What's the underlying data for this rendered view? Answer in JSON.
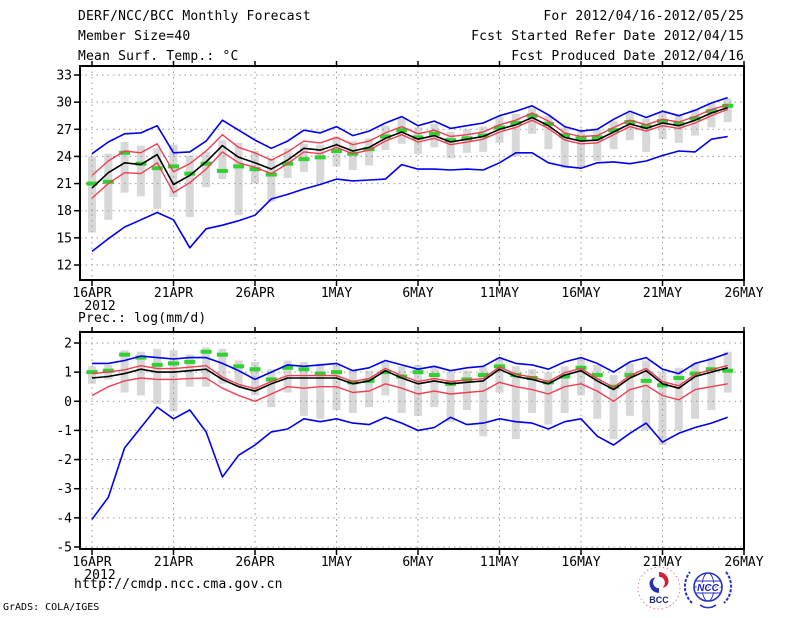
{
  "header": {
    "title": "DERF/NCC/BCC Monthly Forecast",
    "member_size": "Member Size=40",
    "for_range": "For 2012/04/16-2012/05/25",
    "fcst_started": "Fcst Started Refer Date 2012/04/15",
    "fcst_produced": "Fcst Produced Date 2012/04/16"
  },
  "footer": {
    "url": "http://cmdp.ncc.cma.gov.cn",
    "credit": "GrADS: COLA/IGES",
    "logos": [
      {
        "label": "BCC"
      },
      {
        "label": "NCC"
      }
    ]
  },
  "colors": {
    "envelope_blue": "#0000f0",
    "bound_red": "#ef3f52",
    "mean_black": "#000000",
    "climatology_green": "#30d130",
    "spread_bar_gray": "#d8d8d8",
    "grid_gray": "#999999",
    "frame_black": "#000000"
  },
  "chart_data": [
    {
      "type": "line",
      "title": "Mean Surf. Temp.: °C",
      "x_tick_labels": [
        "16APR",
        "21APR",
        "26APR",
        "1MAY",
        "6MAY",
        "11MAY",
        "16MAY",
        "21MAY",
        "26MAY"
      ],
      "x_year_label": "2012",
      "yticks": [
        33,
        30,
        27,
        24,
        21,
        18,
        15,
        12
      ],
      "ylim": [
        10.3,
        34.0
      ],
      "xlim_days": [
        0,
        40
      ],
      "grid": "dotted",
      "legend_position": "none",
      "series": [
        {
          "name": "ensemble-max",
          "color": "#0000f0",
          "values": [
            24.3,
            25.6,
            26.5,
            26.6,
            27.4,
            24.4,
            24.5,
            25.7,
            28.0,
            26.9,
            25.8,
            24.9,
            25.7,
            26.9,
            26.6,
            27.3,
            26.3,
            26.8,
            27.7,
            28.4,
            27.4,
            27.9,
            27.1,
            27.4,
            27.7,
            28.5,
            29.0,
            29.6,
            28.6,
            27.3,
            26.8,
            27.0,
            28.1,
            29.0,
            28.3,
            29.0,
            28.5,
            29.1,
            29.9,
            30.5
          ]
        },
        {
          "name": "upper-bound",
          "color": "#ef3f52",
          "values": [
            21.9,
            23.5,
            24.6,
            24.4,
            25.4,
            22.3,
            23.2,
            24.6,
            26.4,
            25.0,
            24.4,
            23.6,
            24.5,
            25.7,
            25.5,
            26.1,
            25.3,
            25.7,
            26.6,
            27.3,
            26.5,
            26.9,
            26.2,
            26.4,
            26.7,
            27.5,
            28.0,
            28.8,
            27.9,
            26.6,
            26.2,
            26.3,
            27.2,
            28.0,
            27.5,
            28.1,
            27.8,
            28.4,
            29.2,
            29.7
          ]
        },
        {
          "name": "ensemble-mean",
          "color": "#000000",
          "values": [
            20.5,
            22.2,
            23.3,
            23.1,
            24.2,
            20.9,
            21.9,
            23.4,
            25.2,
            23.9,
            23.3,
            22.6,
            23.6,
            24.9,
            24.7,
            25.3,
            24.6,
            25.0,
            26.0,
            26.7,
            25.9,
            26.3,
            25.6,
            25.9,
            26.2,
            27.0,
            27.5,
            28.3,
            27.4,
            26.1,
            25.7,
            25.8,
            26.7,
            27.6,
            27.1,
            27.7,
            27.4,
            28.0,
            28.8,
            29.4
          ]
        },
        {
          "name": "lower-bound",
          "color": "#ef3f52",
          "values": [
            19.4,
            21.0,
            22.2,
            22.1,
            23.3,
            20.0,
            21.1,
            22.6,
            24.5,
            23.3,
            22.8,
            22.1,
            23.2,
            24.5,
            24.3,
            25.0,
            24.3,
            24.7,
            25.7,
            26.4,
            25.6,
            26.0,
            25.3,
            25.6,
            25.9,
            26.7,
            27.2,
            28.0,
            27.1,
            25.8,
            25.4,
            25.5,
            26.4,
            27.3,
            26.8,
            27.4,
            27.1,
            27.7,
            28.5,
            29.2
          ]
        },
        {
          "name": "ensemble-min",
          "color": "#0000f0",
          "values": [
            13.5,
            14.9,
            16.2,
            17.0,
            17.8,
            17.0,
            13.9,
            16.0,
            16.4,
            16.9,
            17.5,
            19.3,
            19.8,
            20.4,
            20.9,
            21.5,
            21.3,
            21.4,
            21.5,
            23.1,
            22.6,
            22.6,
            22.5,
            22.6,
            22.5,
            23.3,
            24.4,
            24.4,
            23.3,
            22.9,
            22.7,
            23.3,
            23.4,
            23.2,
            23.5,
            24.1,
            24.6,
            24.5,
            25.9,
            26.2
          ]
        }
      ],
      "climatology": {
        "name": "climatology-mean",
        "color": "#30d130",
        "values": [
          21.0,
          21.2,
          24.4,
          23.2,
          22.7,
          22.9,
          22.1,
          23.2,
          22.4,
          22.9,
          22.6,
          22.0,
          23.2,
          23.7,
          23.9,
          24.6,
          24.3,
          24.8,
          26.2,
          26.9,
          26.1,
          26.5,
          25.8,
          26.0,
          26.3,
          27.2,
          27.7,
          28.5,
          27.6,
          26.3,
          26.0,
          26.1,
          26.9,
          27.8,
          27.3,
          27.9,
          27.6,
          28.2,
          29.0,
          29.6
        ]
      },
      "spread_bars": {
        "name": "climatology-spread",
        "color": "#d8d8d8",
        "ranges": [
          [
            15.6,
            24.0
          ],
          [
            17.0,
            24.3
          ],
          [
            20.0,
            25.6
          ],
          [
            19.6,
            25.2
          ],
          [
            18.2,
            24.9
          ],
          [
            19.5,
            25.3
          ],
          [
            17.3,
            24.1
          ],
          [
            20.6,
            24.5
          ],
          [
            21.5,
            25.8
          ],
          [
            17.5,
            25.5
          ],
          [
            21.0,
            24.6
          ],
          [
            19.0,
            23.8
          ],
          [
            21.6,
            24.9
          ],
          [
            22.3,
            25.4
          ],
          [
            21.0,
            25.3
          ],
          [
            22.9,
            26.2
          ],
          [
            22.5,
            25.7
          ],
          [
            23.0,
            26.0
          ],
          [
            24.7,
            27.4
          ],
          [
            25.4,
            28.2
          ],
          [
            24.3,
            27.2
          ],
          [
            25.0,
            27.6
          ],
          [
            23.8,
            26.7
          ],
          [
            24.4,
            27.0
          ],
          [
            24.5,
            27.3
          ],
          [
            25.5,
            28.4
          ],
          [
            24.0,
            28.7
          ],
          [
            26.5,
            29.4
          ],
          [
            24.8,
            28.5
          ],
          [
            22.7,
            27.2
          ],
          [
            22.8,
            26.9
          ],
          [
            23.5,
            27.0
          ],
          [
            24.8,
            27.9
          ],
          [
            25.8,
            28.8
          ],
          [
            24.5,
            28.2
          ],
          [
            25.9,
            28.9
          ],
          [
            25.5,
            28.6
          ],
          [
            26.3,
            29.2
          ],
          [
            27.2,
            29.9
          ],
          [
            27.8,
            30.4
          ]
        ]
      }
    },
    {
      "type": "line",
      "title": "Prec.: log(mm/d)",
      "x_tick_labels": [
        "16APR",
        "21APR",
        "26APR",
        "1MAY",
        "6MAY",
        "11MAY",
        "16MAY",
        "21MAY",
        "26MAY"
      ],
      "x_year_label": "2012",
      "yticks": [
        2,
        1,
        0,
        -1,
        -2,
        -3,
        -4,
        -5
      ],
      "ylim": [
        -5.1,
        2.3
      ],
      "xlim_days": [
        0,
        40
      ],
      "grid": "dotted",
      "legend_position": "none",
      "series": [
        {
          "name": "ensemble-max",
          "color": "#0000f0",
          "values": [
            1.3,
            1.3,
            1.4,
            1.55,
            1.5,
            1.45,
            1.5,
            1.5,
            1.3,
            1.05,
            0.75,
            1.0,
            1.25,
            1.2,
            1.25,
            1.3,
            1.05,
            1.15,
            1.4,
            1.25,
            1.1,
            1.2,
            1.05,
            1.15,
            1.2,
            1.5,
            1.3,
            1.25,
            1.1,
            1.35,
            1.5,
            1.3,
            1.0,
            1.35,
            1.5,
            1.1,
            0.95,
            1.3,
            1.45,
            1.65
          ]
        },
        {
          "name": "upper-bound",
          "color": "#ef3f52",
          "values": [
            0.95,
            1.0,
            1.08,
            1.22,
            1.12,
            1.12,
            1.17,
            1.22,
            0.83,
            0.58,
            0.43,
            0.68,
            0.88,
            0.88,
            0.88,
            0.88,
            0.68,
            0.78,
            1.13,
            0.88,
            0.68,
            0.78,
            0.68,
            0.73,
            0.78,
            1.18,
            0.93,
            0.83,
            0.68,
            0.98,
            1.13,
            0.78,
            0.48,
            0.88,
            1.13,
            0.68,
            0.53,
            0.93,
            1.08,
            1.23
          ]
        },
        {
          "name": "ensemble-mean",
          "color": "#000000",
          "values": [
            0.8,
            0.85,
            0.95,
            1.1,
            1.0,
            1.0,
            1.05,
            1.1,
            0.75,
            0.5,
            0.35,
            0.6,
            0.8,
            0.8,
            0.8,
            0.8,
            0.6,
            0.7,
            1.05,
            0.8,
            0.6,
            0.7,
            0.6,
            0.65,
            0.7,
            1.1,
            0.85,
            0.75,
            0.6,
            0.9,
            1.05,
            0.7,
            0.4,
            0.8,
            1.05,
            0.6,
            0.45,
            0.85,
            1.0,
            1.15
          ]
        },
        {
          "name": "lower-bound",
          "color": "#ef3f52",
          "values": [
            0.2,
            0.5,
            0.7,
            0.8,
            0.75,
            0.75,
            0.78,
            0.8,
            0.45,
            0.2,
            0.0,
            0.25,
            0.5,
            0.45,
            0.5,
            0.5,
            0.3,
            0.35,
            0.6,
            0.45,
            0.25,
            0.35,
            0.25,
            0.3,
            0.35,
            0.65,
            0.5,
            0.4,
            0.25,
            0.5,
            0.6,
            0.35,
            0.0,
            0.4,
            0.55,
            0.2,
            0.05,
            0.4,
            0.5,
            0.6
          ]
        },
        {
          "name": "ensemble-min",
          "color": "#0000f0",
          "values": [
            -4.05,
            -3.3,
            -1.6,
            -0.9,
            -0.2,
            -0.6,
            -0.3,
            -1.05,
            -2.6,
            -1.85,
            -1.5,
            -1.05,
            -0.95,
            -0.6,
            -0.7,
            -0.6,
            -0.75,
            -0.8,
            -0.55,
            -0.75,
            -1.0,
            -0.9,
            -0.55,
            -0.8,
            -0.75,
            -0.6,
            -0.7,
            -0.75,
            -0.95,
            -0.7,
            -0.6,
            -1.2,
            -1.5,
            -1.1,
            -0.75,
            -1.4,
            -1.1,
            -0.9,
            -0.75,
            -0.55
          ]
        }
      ],
      "climatology": {
        "name": "climatology-mean",
        "color": "#30d130",
        "values": [
          1.0,
          1.05,
          1.6,
          1.5,
          1.25,
          1.3,
          1.35,
          1.7,
          1.6,
          1.2,
          1.1,
          0.75,
          1.15,
          1.1,
          0.95,
          1.0,
          0.65,
          0.7,
          1.0,
          0.85,
          1.0,
          0.9,
          0.6,
          0.75,
          0.9,
          1.2,
          0.9,
          0.8,
          0.65,
          0.85,
          1.15,
          0.9,
          0.5,
          0.9,
          0.7,
          0.55,
          0.8,
          0.95,
          1.1,
          1.05
        ]
      },
      "spread_bars": {
        "name": "climatology-spread",
        "color": "#d8d8d8",
        "ranges": [
          [
            0.6,
            1.2
          ],
          [
            0.75,
            1.25
          ],
          [
            0.3,
            1.75
          ],
          [
            0.2,
            1.7
          ],
          [
            -0.1,
            1.8
          ],
          [
            -0.35,
            1.75
          ],
          [
            0.5,
            1.6
          ],
          [
            0.5,
            1.85
          ],
          [
            0.6,
            1.8
          ],
          [
            0.5,
            1.4
          ],
          [
            0.2,
            1.35
          ],
          [
            -0.2,
            1.1
          ],
          [
            0.3,
            1.4
          ],
          [
            -0.5,
            1.35
          ],
          [
            -0.6,
            1.3
          ],
          [
            -0.3,
            1.3
          ],
          [
            -0.4,
            1.1
          ],
          [
            -0.2,
            1.05
          ],
          [
            0.2,
            1.35
          ],
          [
            -0.4,
            1.2
          ],
          [
            -0.5,
            1.25
          ],
          [
            -0.2,
            1.2
          ],
          [
            -0.7,
            1.0
          ],
          [
            -0.3,
            1.05
          ],
          [
            -1.2,
            1.2
          ],
          [
            0.3,
            1.5
          ],
          [
            -1.3,
            1.2
          ],
          [
            -0.4,
            1.1
          ],
          [
            -0.8,
            1.0
          ],
          [
            -0.4,
            1.2
          ],
          [
            0.2,
            1.5
          ],
          [
            -0.6,
            1.25
          ],
          [
            -1.3,
            0.9
          ],
          [
            -0.5,
            1.3
          ],
          [
            -1.0,
            1.4
          ],
          [
            -1.5,
            1.0
          ],
          [
            -1.0,
            1.15
          ],
          [
            -0.6,
            1.3
          ],
          [
            -0.3,
            1.5
          ],
          [
            0.3,
            1.7
          ]
        ]
      }
    }
  ]
}
